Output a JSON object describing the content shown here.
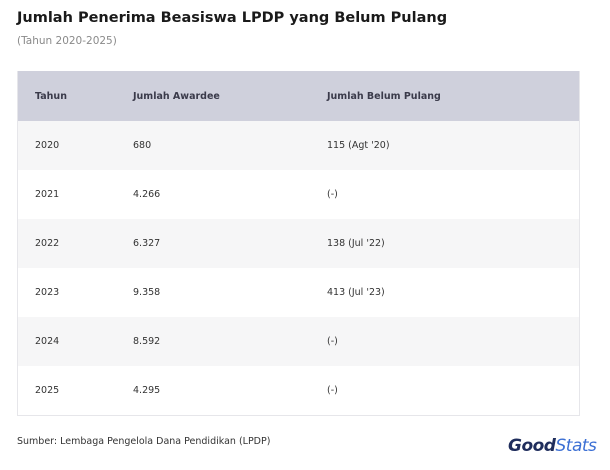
{
  "header": {
    "title": "Jumlah Penerima Beasiswa LPDP yang Belum Pulang",
    "subtitle": "(Tahun 2020-2025)"
  },
  "table": {
    "columns": [
      "Tahun",
      "Jumlah Awardee",
      "Jumlah Belum Pulang"
    ],
    "rows": [
      [
        "2020",
        "680",
        "115 (Agt '20)"
      ],
      [
        "2021",
        "4.266",
        "(-)"
      ],
      [
        "2022",
        "6.327",
        "138 (Jul '22)"
      ],
      [
        "2023",
        "9.358",
        "413 (Jul '23)"
      ],
      [
        "2024",
        "8.592",
        "(-)"
      ],
      [
        "2025",
        "4.295",
        "(-)"
      ]
    ]
  },
  "footer": {
    "source": "Sumber: Lembaga Pengelola Dana Pendidikan (LPDP)",
    "logo": [
      "Good",
      "Stats"
    ]
  }
}
